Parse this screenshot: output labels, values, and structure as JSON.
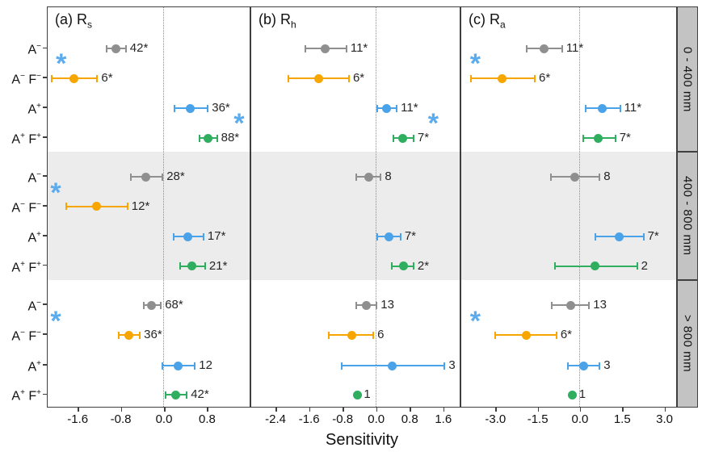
{
  "figure": {
    "xlabel": "Sensitivity"
  },
  "chart_data": {
    "type": "scatter",
    "title": "",
    "xlabel": "Sensitivity",
    "legend": "none",
    "grid": "off",
    "facet_rows": [
      "0 - 400 mm",
      "400 - 800 mm",
      "> 800 mm"
    ],
    "categories": [
      {
        "segments": [
          {
            "t": "A",
            "s": "−"
          }
        ]
      },
      {
        "segments": [
          {
            "t": "A",
            "s": "−"
          },
          {
            "t": " F",
            "s": "−"
          }
        ]
      },
      {
        "segments": [
          {
            "t": "A",
            "s": "+"
          }
        ]
      },
      {
        "segments": [
          {
            "t": "A",
            "s": "+"
          },
          {
            "t": " F",
            "s": "+"
          }
        ]
      }
    ],
    "colors": {
      "gray": "#8f8f8f",
      "orange": "#f7a600",
      "blue": "#4aa2e8",
      "green": "#2fae60",
      "asterisk": "#5babef",
      "band": "#ececec",
      "strip_bg": "#c3c3c3",
      "border": "#3f3f3f",
      "label_text": "#262626"
    },
    "panels": [
      {
        "id": "a",
        "label_prefix": "(a) R",
        "label_sub": "s",
        "xlim": [
          -2.15,
          1.58
        ],
        "ticks": [
          {
            "v": -1.6,
            "t": "-1.6"
          },
          {
            "v": -0.8,
            "t": "-0.8"
          },
          {
            "v": 0.0,
            "t": "0.0"
          },
          {
            "v": 0.8,
            "t": "0.8"
          }
        ],
        "groups": [
          {
            "facet": "0 - 400 mm",
            "points": [
              {
                "row": 0,
                "series": "gray",
                "x": -0.89,
                "lo": -1.05,
                "hi": -0.7,
                "n": "42*"
              },
              {
                "row": 1,
                "series": "orange",
                "x": -1.66,
                "lo": -2.07,
                "hi": -1.23,
                "n": "6*"
              },
              {
                "row": 2,
                "series": "blue",
                "x": 0.5,
                "lo": 0.2,
                "hi": 0.82,
                "n": "36*"
              },
              {
                "row": 3,
                "series": "green",
                "x": 0.82,
                "lo": 0.67,
                "hi": 0.99,
                "n": "88*"
              }
            ],
            "asterisks": [
              {
                "x": -1.9,
                "rows": [
                  0,
                  1
                ]
              },
              {
                "x": 1.4,
                "rows": [
                  2,
                  3
                ]
              }
            ]
          },
          {
            "facet": "400 - 800 mm",
            "points": [
              {
                "row": 0,
                "series": "gray",
                "x": -0.33,
                "lo": -0.61,
                "hi": -0.02,
                "n": "28*"
              },
              {
                "row": 1,
                "series": "orange",
                "x": -1.24,
                "lo": -1.81,
                "hi": -0.67,
                "n": "12*"
              },
              {
                "row": 2,
                "series": "blue",
                "x": 0.45,
                "lo": 0.18,
                "hi": 0.74,
                "n": "17*"
              },
              {
                "row": 3,
                "series": "green",
                "x": 0.52,
                "lo": 0.31,
                "hi": 0.77,
                "n": "21*"
              }
            ],
            "asterisks": [
              {
                "x": -2.0,
                "rows": [
                  0,
                  1
                ]
              }
            ]
          },
          {
            "facet": "> 800 mm",
            "points": [
              {
                "row": 0,
                "series": "gray",
                "x": -0.22,
                "lo": -0.37,
                "hi": -0.05,
                "n": "68*"
              },
              {
                "row": 1,
                "series": "orange",
                "x": -0.65,
                "lo": -0.83,
                "hi": -0.44,
                "n": "36*"
              },
              {
                "row": 2,
                "series": "blue",
                "x": 0.27,
                "lo": -0.03,
                "hi": 0.58,
                "n": "12"
              },
              {
                "row": 3,
                "series": "green",
                "x": 0.22,
                "lo": 0.04,
                "hi": 0.43,
                "n": "42*"
              }
            ],
            "asterisks": [
              {
                "x": -2.0,
                "rows": [
                  0,
                  1
                ]
              }
            ]
          }
        ]
      },
      {
        "id": "b",
        "label_prefix": "(b) R",
        "label_sub": "h",
        "xlim": [
          -2.97,
          1.98
        ],
        "ticks": [
          {
            "v": -2.4,
            "t": "-2.4"
          },
          {
            "v": -1.6,
            "t": "-1.6"
          },
          {
            "v": -0.8,
            "t": "-0.8"
          },
          {
            "v": 0.0,
            "t": "0.0"
          },
          {
            "v": 0.8,
            "t": "0.8"
          },
          {
            "v": 1.6,
            "t": "1.6"
          }
        ],
        "groups": [
          {
            "facet": "0 - 400 mm",
            "points": [
              {
                "row": 0,
                "series": "gray",
                "x": -1.2,
                "lo": -1.68,
                "hi": -0.7,
                "n": "11*"
              },
              {
                "row": 1,
                "series": "orange",
                "x": -1.37,
                "lo": -2.08,
                "hi": -0.64,
                "n": "6*"
              },
              {
                "row": 2,
                "series": "blue",
                "x": 0.25,
                "lo": 0.04,
                "hi": 0.5,
                "n": "11*"
              },
              {
                "row": 3,
                "series": "green",
                "x": 0.65,
                "lo": 0.42,
                "hi": 0.9,
                "n": "7*"
              }
            ],
            "asterisks": [
              {
                "x": 1.37,
                "rows": [
                  2,
                  3
                ]
              }
            ]
          },
          {
            "facet": "400 - 800 mm",
            "points": [
              {
                "row": 0,
                "series": "gray",
                "x": -0.17,
                "lo": -0.46,
                "hi": 0.12,
                "n": "8"
              },
              {
                "row": 2,
                "series": "blue",
                "x": 0.32,
                "lo": 0.04,
                "hi": 0.59,
                "n": "7*"
              },
              {
                "row": 3,
                "series": "green",
                "x": 0.67,
                "lo": 0.38,
                "hi": 0.9,
                "n": "2*"
              }
            ],
            "asterisks": []
          },
          {
            "facet": "> 800 mm",
            "points": [
              {
                "row": 0,
                "series": "gray",
                "x": -0.23,
                "lo": -0.46,
                "hi": 0.02,
                "n": "13"
              },
              {
                "row": 1,
                "series": "orange",
                "x": -0.57,
                "lo": -1.12,
                "hi": -0.06,
                "n": "6"
              },
              {
                "row": 2,
                "series": "blue",
                "x": 0.4,
                "lo": -0.82,
                "hi": 1.64,
                "n": "3"
              },
              {
                "row": 3,
                "series": "green",
                "x": -0.44,
                "lo": null,
                "hi": null,
                "n": "1"
              }
            ],
            "asterisks": []
          }
        ]
      },
      {
        "id": "c",
        "label_prefix": "(c) R",
        "label_sub": "a",
        "xlim": [
          -4.2,
          3.4
        ],
        "ticks": [
          {
            "v": -3.0,
            "t": "-3.0"
          },
          {
            "v": -1.5,
            "t": "-1.5"
          },
          {
            "v": 0.0,
            "t": "0.0"
          },
          {
            "v": 1.5,
            "t": "1.5"
          },
          {
            "v": 3.0,
            "t": "3.0"
          }
        ],
        "groups": [
          {
            "facet": "0 - 400 mm",
            "points": [
              {
                "row": 0,
                "series": "gray",
                "x": -1.27,
                "lo": -1.87,
                "hi": -0.62,
                "n": "11*"
              },
              {
                "row": 1,
                "series": "orange",
                "x": -2.75,
                "lo": -3.85,
                "hi": -1.59,
                "n": "6*"
              },
              {
                "row": 2,
                "series": "blue",
                "x": 0.8,
                "lo": 0.23,
                "hi": 1.44,
                "n": "11*"
              },
              {
                "row": 3,
                "series": "green",
                "x": 0.65,
                "lo": 0.14,
                "hi": 1.27,
                "n": "7*"
              }
            ],
            "asterisks": [
              {
                "x": -3.7,
                "rows": [
                  0,
                  1
                ]
              }
            ]
          },
          {
            "facet": "400 - 800 mm",
            "points": [
              {
                "row": 0,
                "series": "gray",
                "x": -0.17,
                "lo": -1.02,
                "hi": 0.71,
                "n": "8"
              },
              {
                "row": 2,
                "series": "blue",
                "x": 1.42,
                "lo": 0.57,
                "hi": 2.27,
                "n": "7*"
              },
              {
                "row": 3,
                "series": "green",
                "x": 0.54,
                "lo": -0.88,
                "hi": 2.04,
                "n": "2"
              }
            ],
            "asterisks": []
          },
          {
            "facet": "> 800 mm",
            "points": [
              {
                "row": 0,
                "series": "gray",
                "x": -0.31,
                "lo": -0.99,
                "hi": 0.34,
                "n": "13"
              },
              {
                "row": 1,
                "series": "orange",
                "x": -1.9,
                "lo": -3.0,
                "hi": -0.82,
                "n": "6*"
              },
              {
                "row": 2,
                "series": "blue",
                "x": 0.14,
                "lo": -0.42,
                "hi": 0.71,
                "n": "3"
              },
              {
                "row": 3,
                "series": "green",
                "x": -0.25,
                "lo": null,
                "hi": null,
                "n": "1"
              }
            ],
            "asterisks": [
              {
                "x": -3.7,
                "rows": [
                  0,
                  1
                ]
              }
            ]
          }
        ]
      }
    ]
  }
}
